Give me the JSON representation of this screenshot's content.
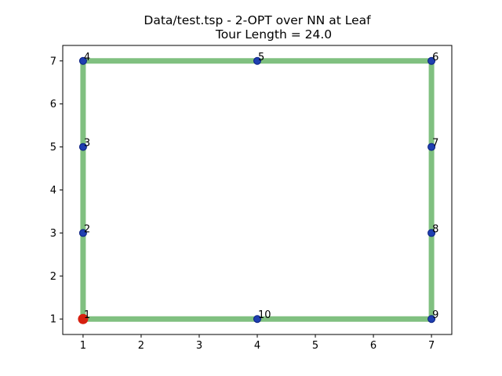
{
  "chart_data": {
    "type": "line",
    "title_line1": "Data/test.tsp - 2-OPT over NN at Leaf",
    "title_line2": "Tour Length = 24.0",
    "xlabel": "",
    "ylabel": "",
    "xlim": [
      0.65,
      7.35
    ],
    "ylim": [
      0.64,
      7.36
    ],
    "xticks": [
      1,
      2,
      3,
      4,
      5,
      6,
      7
    ],
    "yticks": [
      1,
      2,
      3,
      4,
      5,
      6,
      7
    ],
    "grid": false,
    "nodes": [
      {
        "label": "1",
        "x": 1,
        "y": 1
      },
      {
        "label": "2",
        "x": 1,
        "y": 3
      },
      {
        "label": "3",
        "x": 1,
        "y": 5
      },
      {
        "label": "4",
        "x": 1,
        "y": 7
      },
      {
        "label": "5",
        "x": 4,
        "y": 7
      },
      {
        "label": "6",
        "x": 7,
        "y": 7
      },
      {
        "label": "7",
        "x": 7,
        "y": 5
      },
      {
        "label": "8",
        "x": 7,
        "y": 3
      },
      {
        "label": "9",
        "x": 7,
        "y": 1
      },
      {
        "label": "10",
        "x": 4,
        "y": 1
      }
    ],
    "tour": [
      "1",
      "2",
      "3",
      "4",
      "5",
      "6",
      "7",
      "8",
      "9",
      "10",
      "1"
    ],
    "start_node": "1",
    "colors": {
      "tour_line": "#80c080",
      "node": "#1f3fb0",
      "node_edge": "#0a1f80",
      "start_node": "#d62010"
    }
  }
}
